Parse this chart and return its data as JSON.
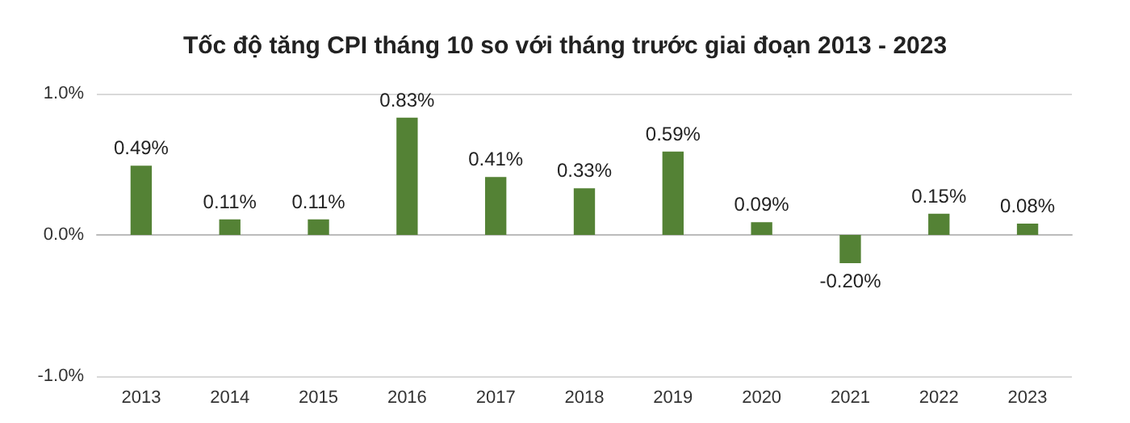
{
  "chart_data": {
    "type": "bar",
    "title": "Tốc độ tăng CPI tháng 10 so với tháng trước giai đoạn 2013 - 2023",
    "categories": [
      "2013",
      "2014",
      "2015",
      "2016",
      "2017",
      "2018",
      "2019",
      "2020",
      "2021",
      "2022",
      "2023"
    ],
    "values": [
      0.49,
      0.11,
      0.11,
      0.83,
      0.41,
      0.33,
      0.59,
      0.09,
      -0.2,
      0.15,
      0.08
    ],
    "value_labels": [
      "0.49%",
      "0.11%",
      "0.11%",
      "0.83%",
      "0.41%",
      "0.33%",
      "0.59%",
      "0.09%",
      "-0.20%",
      "0.15%",
      "0.08%"
    ],
    "color": "#548235",
    "ylim": [
      -1,
      1
    ],
    "yticks": [
      {
        "value": -1,
        "label": "-1.0%"
      },
      {
        "value": 0,
        "label": "0.0%"
      },
      {
        "value": 1,
        "label": "1.0%"
      }
    ],
    "grid": "y"
  }
}
